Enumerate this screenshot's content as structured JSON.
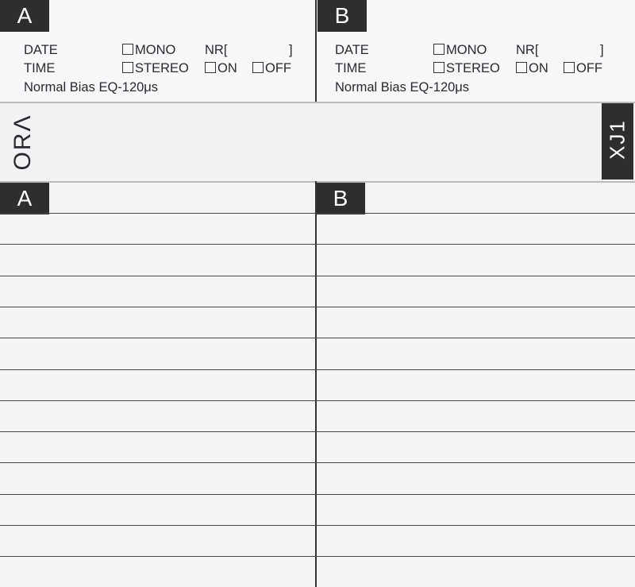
{
  "side_a": {
    "tab": "A",
    "date": "DATE",
    "time": "TIME",
    "mono": "MONO",
    "stereo": "STEREO",
    "nr": "NR[",
    "nr_close": "]",
    "on": "ON",
    "off": "OFF",
    "bias": "Normal Bias EQ-120μs"
  },
  "side_b": {
    "tab": "B",
    "date": "DATE",
    "time": "TIME",
    "mono": "MONO",
    "stereo": "STEREO",
    "nr": "NR[",
    "nr_close": "]",
    "on": "ON",
    "off": "OFF",
    "bias": "Normal Bias EQ-120μs"
  },
  "spine": {
    "brand": "ORΛ",
    "model": "XJ1"
  },
  "lower": {
    "tab_a": "A",
    "tab_b": "B"
  },
  "colors": {
    "tab": "#2e2e30",
    "paper": "#f4f4f6"
  }
}
